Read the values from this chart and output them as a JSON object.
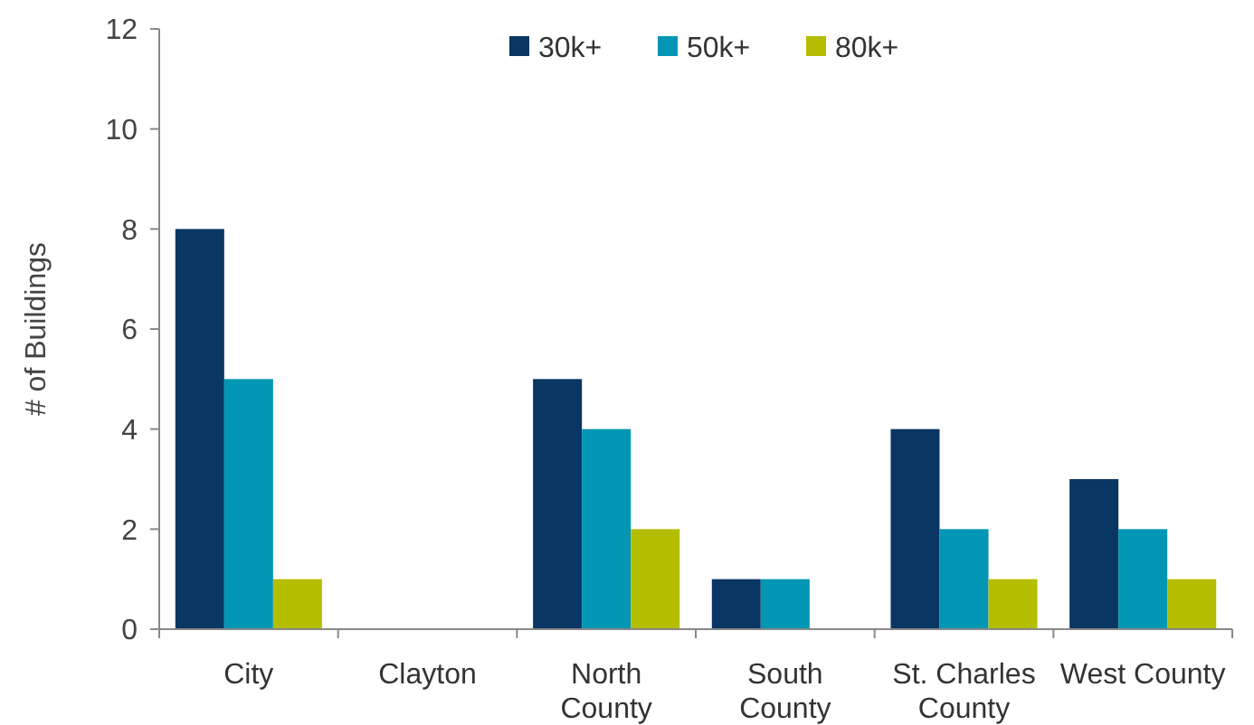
{
  "chart_data": {
    "type": "bar",
    "ylabel": "# of Buildings",
    "categories": [
      "City",
      "Clayton",
      "North County",
      "South County",
      "St. Charles County",
      "West County"
    ],
    "series": [
      {
        "name": "30k+",
        "color": "#0a3663",
        "values": [
          8,
          0,
          5,
          1,
          4,
          3
        ]
      },
      {
        "name": "50k+",
        "color": "#0096b4",
        "values": [
          5,
          0,
          4,
          1,
          2,
          2
        ]
      },
      {
        "name": "80k+",
        "color": "#b4bd00",
        "values": [
          1,
          0,
          2,
          0,
          1,
          1
        ]
      }
    ],
    "ylim": [
      0,
      12
    ],
    "yticks": [
      0,
      2,
      4,
      6,
      8,
      10,
      12
    ],
    "grid": false,
    "legend": "top"
  }
}
